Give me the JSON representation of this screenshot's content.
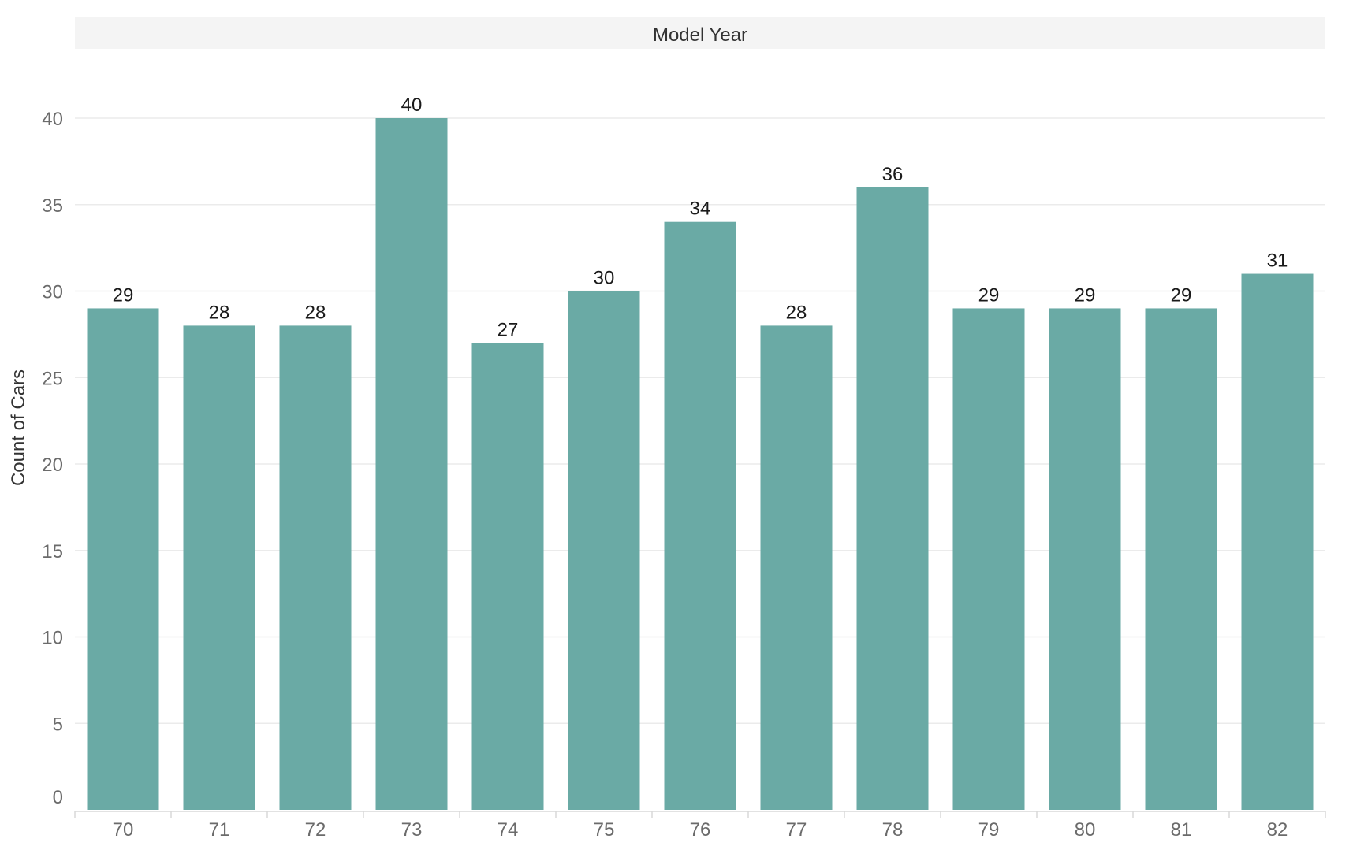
{
  "chart_data": {
    "type": "bar",
    "header": "Model Year",
    "ylabel": "Count of Cars",
    "xlabel": "",
    "categories": [
      "70",
      "71",
      "72",
      "73",
      "74",
      "75",
      "76",
      "77",
      "78",
      "79",
      "80",
      "81",
      "82"
    ],
    "values": [
      29,
      28,
      28,
      40,
      27,
      30,
      34,
      28,
      36,
      29,
      29,
      29,
      31
    ],
    "ylim": [
      0,
      44
    ],
    "yticks": [
      0,
      5,
      10,
      15,
      20,
      25,
      30,
      35,
      40
    ],
    "grid": true,
    "bar_color": "#6aaaa5",
    "data_labels": true
  },
  "colors": {
    "header_background": "#f4f4f4",
    "gridline": "#ebebeb",
    "tick_text": "#6b6b6b",
    "label_text": "#1a1a1a"
  }
}
